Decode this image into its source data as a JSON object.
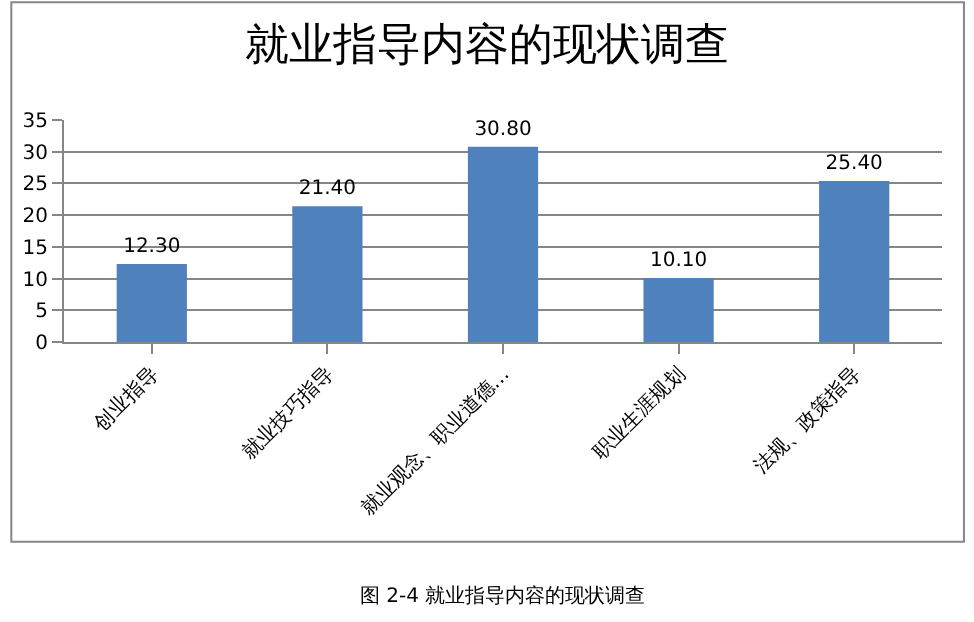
{
  "chart_data": {
    "type": "bar",
    "title": "就业指导内容的现状调查",
    "categories": [
      "创业指导",
      "就业技巧指导",
      "就业观念、职业道德…",
      "职业生涯规划",
      "法规、政策指导"
    ],
    "values": [
      12.3,
      21.4,
      30.8,
      10.1,
      25.4
    ],
    "value_labels": [
      "12.30",
      "21.40",
      "30.80",
      "10.10",
      "25.40"
    ],
    "color": "#4f81bd",
    "ylim": [
      0,
      35
    ],
    "yticks": [
      0,
      5,
      10,
      15,
      20,
      25,
      30,
      35
    ],
    "grid": "y",
    "annotations": [
      "图 2-4 就业指导内容的现状调查"
    ]
  }
}
